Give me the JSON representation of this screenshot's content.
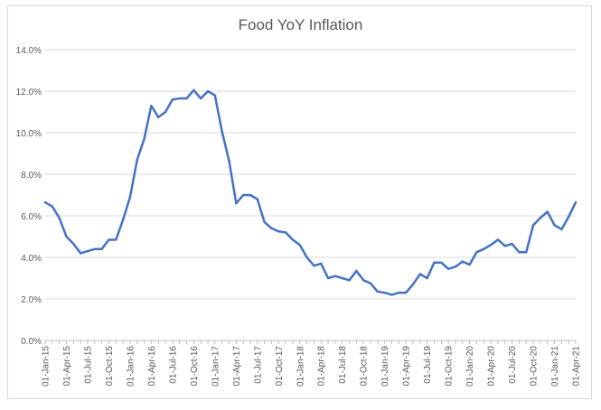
{
  "chart_data": {
    "type": "line",
    "title": "Food YoY Inflation",
    "xlabel": "",
    "ylabel": "",
    "ylim": [
      0,
      14
    ],
    "y_ticks": [
      "0.0%",
      "2.0%",
      "4.0%",
      "6.0%",
      "8.0%",
      "10.0%",
      "12.0%",
      "14.0%"
    ],
    "x_tick_labels": [
      "01-Jan-15",
      "01-Apr-15",
      "01-Jul-15",
      "01-Oct-15",
      "01-Jan-16",
      "01-Apr-16",
      "01-Jul-16",
      "01-Oct-16",
      "01-Jan-17",
      "01-Apr-17",
      "01-Jul-17",
      "01-Oct-17",
      "01-Jan-18",
      "01-Apr-18",
      "01-Jul-18",
      "01-Oct-18",
      "01-Jan-19",
      "01-Apr-19",
      "01-Jul-19",
      "01-Oct-19",
      "01-Jan-20",
      "01-Apr-20",
      "01-Jul-20",
      "01-Oct-20",
      "01-Jan-21",
      "01-Apr-21"
    ],
    "grid": true,
    "legend": "none",
    "line_color": "#4472C4",
    "series": [
      {
        "values": [
          6.65,
          6.45,
          5.9,
          5.0,
          4.65,
          4.2,
          4.3,
          4.4,
          4.4,
          4.85,
          4.85,
          5.8,
          6.9,
          8.7,
          9.7,
          11.3,
          10.75,
          11.0,
          11.6,
          11.65,
          11.65,
          12.05,
          11.65,
          12.0,
          11.8,
          10.05,
          8.65,
          6.6,
          7.0,
          7.0,
          6.8,
          5.7,
          5.4,
          5.25,
          5.2,
          4.85,
          4.6,
          4.0,
          3.6,
          3.7,
          3.0,
          3.1,
          3.0,
          2.9,
          3.35,
          2.9,
          2.75,
          2.35,
          2.3,
          2.2,
          2.3,
          2.3,
          2.7,
          3.2,
          3.0,
          3.75,
          3.75,
          3.45,
          3.55,
          3.8,
          3.65,
          4.25,
          4.4,
          4.6,
          4.85,
          4.55,
          4.65,
          4.25,
          4.25,
          5.55,
          5.9,
          6.2,
          5.55,
          5.35,
          5.95,
          6.65
        ]
      }
    ]
  }
}
